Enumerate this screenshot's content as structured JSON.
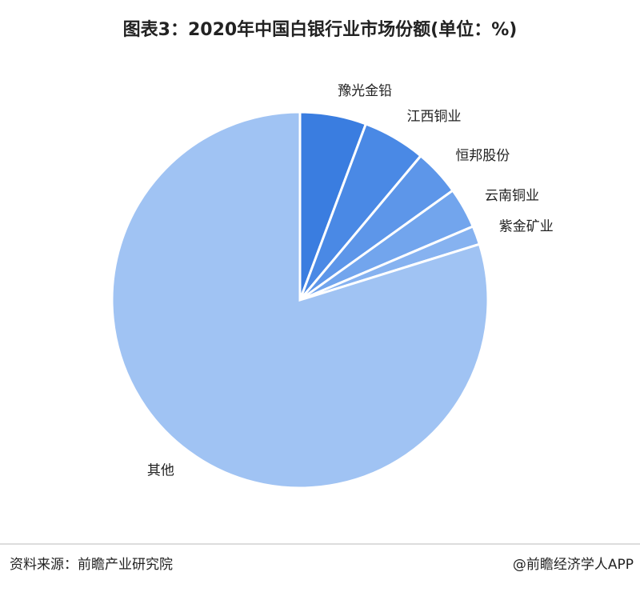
{
  "chart_data": {
    "type": "pie",
    "title": "图表3：2020年中国白银行业市场份额(单位：%)",
    "categories": [
      "豫光金铅",
      "江西铜业",
      "恒邦股份",
      "云南铜业",
      "紫金矿业",
      "其他"
    ],
    "values": [
      5.7,
      5.4,
      4.0,
      3.5,
      1.6,
      79.8
    ],
    "colors": [
      "#3a7de0",
      "#4a89e5",
      "#5d96e9",
      "#72a5ed",
      "#86b2f0",
      "#a0c3f3"
    ],
    "source": "资料来源：前瞻产业研究院",
    "credit": "@前瞻经济学人APP"
  }
}
